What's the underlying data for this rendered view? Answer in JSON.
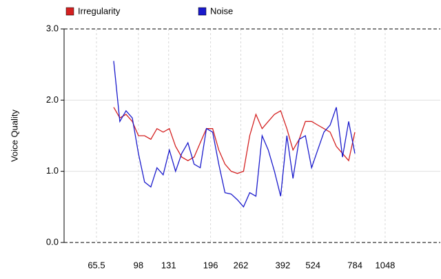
{
  "chart_data": {
    "type": "line",
    "y_label": "Voice Quality",
    "x_scale": "log",
    "legend": "top-left",
    "grid": true,
    "x": [
      77.3,
      82.0,
      87.0,
      92.4,
      98.0,
      104.0,
      110.4,
      117.1,
      124.3,
      131.9,
      140.0,
      148.5,
      157.6,
      167.3,
      177.5,
      188.4,
      199.9,
      212.1,
      225.1,
      238.9,
      253.5,
      269.0,
      285.5,
      302.9,
      321.5,
      341.1,
      362.0,
      384.2,
      407.7,
      432.6,
      459.1,
      487.2,
      517.0,
      548.6,
      582.2,
      617.8,
      655.6,
      695.8,
      738.3,
      783.5
    ],
    "series": [
      {
        "name": "Irregularity",
        "color": "#d42020",
        "values": [
          1.9,
          1.75,
          1.8,
          1.7,
          1.5,
          1.5,
          1.45,
          1.6,
          1.55,
          1.6,
          1.35,
          1.2,
          1.15,
          1.2,
          1.4,
          1.6,
          1.6,
          1.3,
          1.1,
          1.0,
          0.97,
          1.0,
          1.5,
          1.8,
          1.6,
          1.7,
          1.8,
          1.85,
          1.6,
          1.3,
          1.45,
          1.7,
          1.7,
          1.65,
          1.6,
          1.55,
          1.35,
          1.25,
          1.15,
          1.55
        ]
      },
      {
        "name": "Noise",
        "color": "#1a1acc",
        "values": [
          2.55,
          1.7,
          1.85,
          1.75,
          1.25,
          0.85,
          0.78,
          1.05,
          0.95,
          1.3,
          1.0,
          1.25,
          1.4,
          1.1,
          1.05,
          1.6,
          1.55,
          1.1,
          0.7,
          0.68,
          0.6,
          0.5,
          0.7,
          0.65,
          1.5,
          1.3,
          1.0,
          0.65,
          1.5,
          0.9,
          1.45,
          1.5,
          1.05,
          1.3,
          1.55,
          1.65,
          1.9,
          1.2,
          1.7,
          1.25
        ]
      }
    ],
    "xlim": [
      48,
      1780
    ],
    "xticks": [
      65.5,
      98,
      131,
      196,
      262,
      392,
      524,
      784,
      1048
    ],
    "ylim": [
      0,
      3
    ],
    "yticks": [
      {
        "value": 0,
        "label": "0.0"
      },
      {
        "value": 1,
        "label": "1.0"
      },
      {
        "value": 2,
        "label": "2.0"
      },
      {
        "value": 3,
        "label": "3.0"
      }
    ]
  }
}
